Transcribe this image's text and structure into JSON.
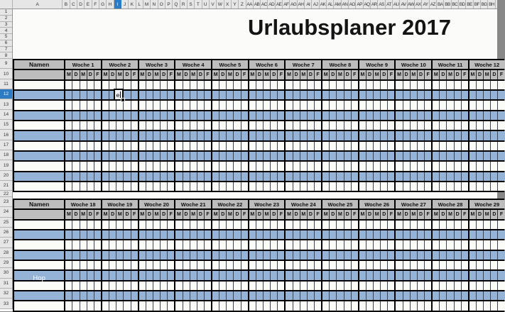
{
  "title": "Urlaubsplaner 2017",
  "chrome": {
    "corner_label": "",
    "column_a_label": "A",
    "column_letters": [
      "B",
      "C",
      "D",
      "E",
      "F",
      "G",
      "H",
      "I",
      "J",
      "K",
      "L",
      "M",
      "N",
      "O",
      "P",
      "Q",
      "R",
      "S",
      "T",
      "U",
      "V",
      "W",
      "X",
      "Y",
      "Z",
      "AA",
      "AB",
      "AC",
      "AD",
      "AE",
      "AF",
      "AG",
      "AH",
      "AI",
      "AJ",
      "AK",
      "AL",
      "AM",
      "AN",
      "AO",
      "AP",
      "AQ",
      "AR",
      "AS",
      "AT",
      "AU",
      "AV",
      "AW",
      "AX",
      "AY",
      "AZ",
      "BA",
      "BB",
      "BC",
      "BD",
      "BE",
      "BF",
      "BG",
      "BH"
    ],
    "selected_column": "I",
    "row_numbers": [
      "1",
      "2",
      "3",
      "4",
      "5",
      "6",
      "7",
      "8",
      "9",
      "10",
      "11",
      "12",
      "13",
      "14",
      "15",
      "16",
      "17",
      "18",
      "19",
      "20",
      "21",
      "22",
      "23",
      "24",
      "25",
      "26",
      "27",
      "28",
      "29",
      "30",
      "31",
      "32",
      "33"
    ],
    "selected_row": "12"
  },
  "planner": {
    "day_labels": [
      "M",
      "D",
      "M",
      "D",
      "F"
    ],
    "tables": [
      {
        "name_header": "Namen",
        "weeks": [
          "Woche 1",
          "Woche 2",
          "Woche 3",
          "Woche 4",
          "Woche 5",
          "Woche 6",
          "Woche 7",
          "Woche 8",
          "Woche 9",
          "Woche 10",
          "Woche 11",
          "Woche 12"
        ],
        "rows": [
          "11",
          "12",
          "13",
          "14",
          "15",
          "16",
          "17",
          "18",
          "19",
          "20",
          "21"
        ]
      },
      {
        "name_header": "Namen",
        "weeks": [
          "Woche 18",
          "Woche 19",
          "Woche 20",
          "Woche 21",
          "Woche 22",
          "Woche 23",
          "Woche 24",
          "Woche 25",
          "Woche 26",
          "Woche 27",
          "Woche 28",
          "Woche 29"
        ],
        "rows": [
          "25",
          "26",
          "27",
          "28",
          "29",
          "30",
          "31",
          "32",
          "33"
        ],
        "watermark_row": "30",
        "watermark": "Hop"
      }
    ]
  },
  "active_cell": {
    "column": "I",
    "row": "12",
    "text": "e"
  },
  "colors": {
    "selection_blue": "#2d7bc2",
    "header_gray": "#bdbdbd",
    "row_blue": "#95b3d7",
    "row_white": "#fbfbf8"
  }
}
